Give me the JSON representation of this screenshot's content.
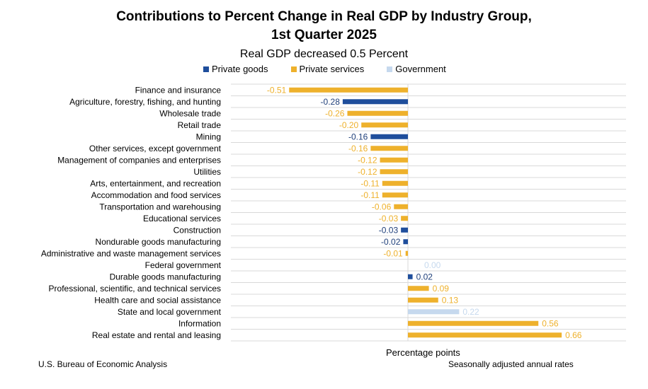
{
  "chart_data": {
    "type": "bar",
    "orientation": "horizontal",
    "title_line1": "Contributions to Percent Change in Real GDP by Industry Group,",
    "title_line2": "1st Quarter 2025",
    "subtitle": "Real GDP decreased 0.5 Percent",
    "xlabel": "Percentage points",
    "xlim": [
      -0.76,
      0.8
    ],
    "legend": [
      {
        "name": "Private goods",
        "color": "#1f4e9c"
      },
      {
        "name": "Private services",
        "color": "#eeb12c"
      },
      {
        "name": "Government",
        "color": "#c6d9ee"
      }
    ],
    "bars": [
      {
        "label": "Finance and insurance",
        "value": -0.51,
        "value_label": "-0.51",
        "group": "Private services"
      },
      {
        "label": "Agriculture, forestry, fishing, and hunting",
        "value": -0.28,
        "value_label": "-0.28",
        "group": "Private goods"
      },
      {
        "label": "Wholesale trade",
        "value": -0.26,
        "value_label": "-0.26",
        "group": "Private services"
      },
      {
        "label": "Retail trade",
        "value": -0.2,
        "value_label": "-0.20",
        "group": "Private services"
      },
      {
        "label": "Mining",
        "value": -0.16,
        "value_label": "-0.16",
        "group": "Private goods"
      },
      {
        "label": "Other services, except government",
        "value": -0.16,
        "value_label": "-0.16",
        "group": "Private services"
      },
      {
        "label": "Management of companies and enterprises",
        "value": -0.12,
        "value_label": "-0.12",
        "group": "Private services"
      },
      {
        "label": "Utilities",
        "value": -0.12,
        "value_label": "-0.12",
        "group": "Private services"
      },
      {
        "label": "Arts, entertainment, and recreation",
        "value": -0.11,
        "value_label": "-0.11",
        "group": "Private services"
      },
      {
        "label": "Accommodation and food services",
        "value": -0.11,
        "value_label": "-0.11",
        "group": "Private services"
      },
      {
        "label": "Transportation and warehousing",
        "value": -0.06,
        "value_label": "-0.06",
        "group": "Private services"
      },
      {
        "label": "Educational services",
        "value": -0.03,
        "value_label": "-0.03",
        "group": "Private services"
      },
      {
        "label": "Construction",
        "value": -0.03,
        "value_label": "-0.03",
        "group": "Private goods"
      },
      {
        "label": "Nondurable goods manufacturing",
        "value": -0.02,
        "value_label": "-0.02",
        "group": "Private goods"
      },
      {
        "label": "Administrative and waste management services",
        "value": -0.01,
        "value_label": "-0.01",
        "group": "Private services"
      },
      {
        "label": "Federal government",
        "value": 0.0,
        "value_label": "0.00",
        "group": "Government"
      },
      {
        "label": "Durable goods manufacturing",
        "value": 0.02,
        "value_label": "0.02",
        "group": "Private goods"
      },
      {
        "label": "Professional, scientific, and technical services",
        "value": 0.09,
        "value_label": "0.09",
        "group": "Private services"
      },
      {
        "label": "Health care and social assistance",
        "value": 0.13,
        "value_label": "0.13",
        "group": "Private services"
      },
      {
        "label": "State and local government",
        "value": 0.22,
        "value_label": "0.22",
        "group": "Government"
      },
      {
        "label": "Information",
        "value": 0.56,
        "value_label": "0.56",
        "group": "Private services"
      },
      {
        "label": "Real estate and rental and leasing",
        "value": 0.66,
        "value_label": "0.66",
        "group": "Private services"
      }
    ]
  },
  "footer": {
    "source": "U.S. Bureau of Economic Analysis",
    "rates": "Seasonally adjusted annual rates"
  }
}
